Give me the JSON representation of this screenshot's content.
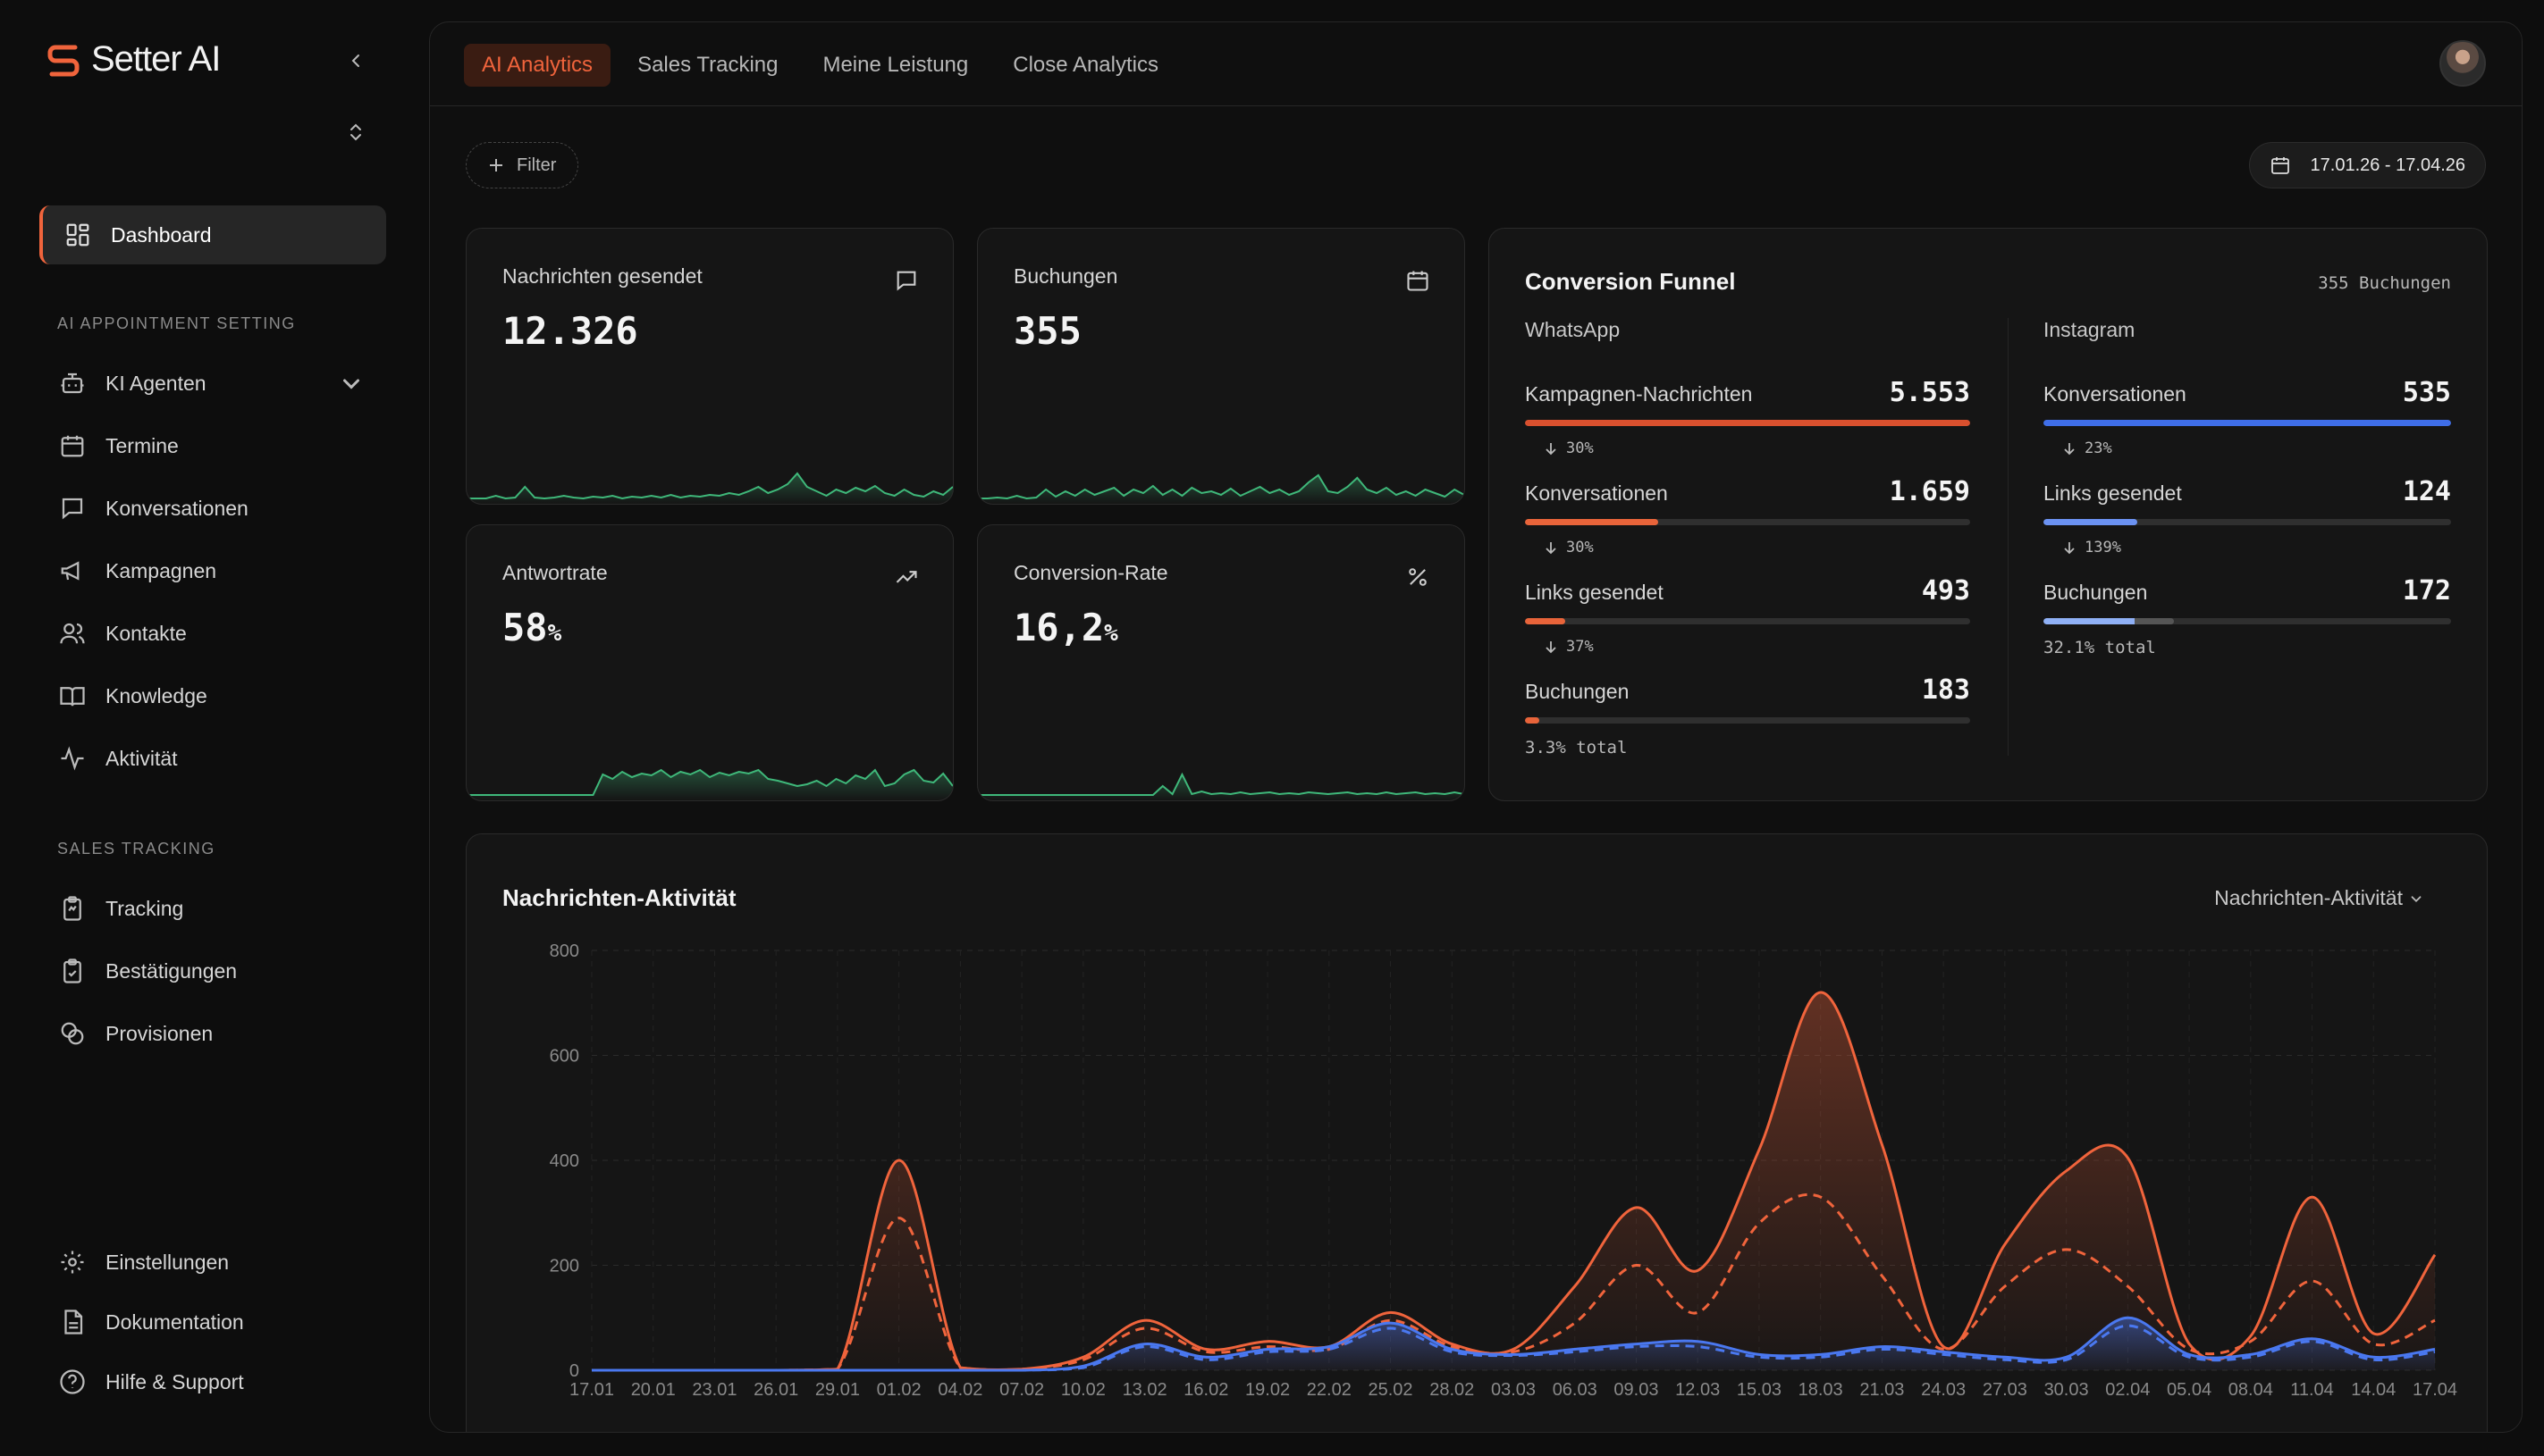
{
  "brand": {
    "name": "Setter AI",
    "accent": "#f0643c"
  },
  "sidebar": {
    "dashboard": "Dashboard",
    "section_ai": "AI APPOINTMENT SETTING",
    "ai_items": [
      {
        "label": "KI Agenten",
        "icon": "bot-icon"
      },
      {
        "label": "Termine",
        "icon": "calendar-icon"
      },
      {
        "label": "Konversationen",
        "icon": "chat-icon"
      },
      {
        "label": "Kampagnen",
        "icon": "megaphone-icon"
      },
      {
        "label": "Kontakte",
        "icon": "users-icon"
      },
      {
        "label": "Knowledge",
        "icon": "book-icon"
      },
      {
        "label": "Aktivität",
        "icon": "activity-icon"
      }
    ],
    "section_sales": "SALES TRACKING",
    "sales_items": [
      {
        "label": "Tracking",
        "icon": "clipboard-icon"
      },
      {
        "label": "Bestätigungen",
        "icon": "clipboard-check-icon"
      },
      {
        "label": "Provisionen",
        "icon": "coins-icon"
      }
    ],
    "bottom_items": [
      {
        "label": "Einstellungen",
        "icon": "gear-icon"
      },
      {
        "label": "Dokumentation",
        "icon": "document-icon"
      },
      {
        "label": "Hilfe & Support",
        "icon": "help-icon"
      }
    ]
  },
  "tabs": [
    "AI Analytics",
    "Sales Tracking",
    "Meine Leistung",
    "Close Analytics"
  ],
  "filter_label": "Filter",
  "date_range": "17.01.26 - 17.04.26",
  "kpis": {
    "messages": {
      "title": "Nachrichten gesendet",
      "value": "12.326"
    },
    "bookings": {
      "title": "Buchungen",
      "value": "355"
    },
    "reply_rate": {
      "title": "Antwortrate",
      "value": "58",
      "unit": "%"
    },
    "conversion": {
      "title": "Conversion-Rate",
      "value": "16,2",
      "unit": "%"
    }
  },
  "funnel": {
    "title": "Conversion Funnel",
    "total": "355 Buchungen",
    "whatsapp": {
      "title": "WhatsApp",
      "rows": [
        {
          "label": "Kampagnen-Nachrichten",
          "value": "5.553",
          "fill": 1.0,
          "drop": "30%"
        },
        {
          "label": "Konversationen",
          "value": "1.659",
          "fill": 0.3,
          "drop": "30%"
        },
        {
          "label": "Links gesendet",
          "value": "493",
          "fill": 0.09,
          "drop": "37%"
        },
        {
          "label": "Buchungen",
          "value": "183",
          "fill": 0.033
        }
      ],
      "total": "3.3% total"
    },
    "instagram": {
      "title": "Instagram",
      "rows": [
        {
          "label": "Konversationen",
          "value": "535",
          "fill": 1.0,
          "drop": "23%"
        },
        {
          "label": "Links gesendet",
          "value": "124",
          "fill": 0.23,
          "drop": "139%"
        },
        {
          "label": "Buchungen",
          "value": "172",
          "fill": 0.32
        }
      ],
      "total": "32.1% total"
    }
  },
  "activity": {
    "title": "Nachrichten-Aktivität",
    "select": "Nachrichten-Aktivität"
  },
  "chart_data": {
    "type": "line",
    "title": "Nachrichten-Aktivität",
    "ylim": [
      0,
      800
    ],
    "yticks": [
      0,
      200,
      400,
      600,
      800
    ],
    "x": [
      "17.01",
      "20.01",
      "23.01",
      "26.01",
      "29.01",
      "01.02",
      "04.02",
      "07.02",
      "10.02",
      "13.02",
      "16.02",
      "19.02",
      "22.02",
      "25.02",
      "28.02",
      "03.03",
      "06.03",
      "09.03",
      "12.03",
      "15.03",
      "18.03",
      "21.03",
      "24.03",
      "27.03",
      "30.03",
      "02.04",
      "05.04",
      "08.04",
      "11.04",
      "14.04",
      "17.04"
    ],
    "grid": true,
    "series": [
      {
        "color": "#f0643c",
        "style": "solid",
        "values": [
          0,
          0,
          0,
          0,
          2,
          400,
          5,
          2,
          25,
          95,
          40,
          55,
          45,
          110,
          50,
          40,
          160,
          310,
          190,
          420,
          720,
          430,
          45,
          240,
          380,
          405,
          50,
          65,
          330,
          70,
          220
        ]
      },
      {
        "color": "#f0643c",
        "style": "dashed",
        "values": [
          0,
          0,
          0,
          0,
          2,
          290,
          5,
          2,
          20,
          80,
          35,
          45,
          40,
          95,
          45,
          35,
          90,
          200,
          110,
          280,
          330,
          180,
          40,
          160,
          230,
          160,
          40,
          55,
          170,
          50,
          95
        ]
      },
      {
        "color": "#4a78f0",
        "style": "solid",
        "values": [
          0,
          0,
          0,
          0,
          0,
          0,
          0,
          0,
          8,
          50,
          25,
          40,
          45,
          90,
          40,
          30,
          40,
          50,
          55,
          30,
          30,
          45,
          35,
          25,
          25,
          100,
          30,
          30,
          60,
          25,
          40
        ]
      },
      {
        "color": "#4a78f0",
        "style": "dashed",
        "values": [
          0,
          0,
          0,
          0,
          0,
          0,
          0,
          0,
          5,
          45,
          20,
          35,
          40,
          80,
          35,
          28,
          35,
          45,
          45,
          25,
          25,
          40,
          30,
          20,
          20,
          85,
          25,
          25,
          55,
          20,
          35
        ]
      }
    ]
  },
  "sparklines": {
    "messages": [
      0.02,
      0.02,
      0.02,
      0.05,
      0.02,
      0.03,
      0.15,
      0.03,
      0.02,
      0.03,
      0.05,
      0.03,
      0.02,
      0.04,
      0.03,
      0.05,
      0.02,
      0.04,
      0.03,
      0.05,
      0.03,
      0.06,
      0.03,
      0.05,
      0.04,
      0.06,
      0.05,
      0.08,
      0.06,
      0.1,
      0.15,
      0.08,
      0.12,
      0.18,
      0.3,
      0.15,
      0.1,
      0.05,
      0.12,
      0.08,
      0.14,
      0.1,
      0.16,
      0.08,
      0.05,
      0.12,
      0.06,
      0.04,
      0.1,
      0.06,
      0.15
    ],
    "bookings": [
      0.02,
      0.02,
      0.03,
      0.02,
      0.05,
      0.02,
      0.03,
      0.12,
      0.04,
      0.1,
      0.05,
      0.12,
      0.06,
      0.1,
      0.14,
      0.05,
      0.12,
      0.08,
      0.16,
      0.06,
      0.12,
      0.05,
      0.14,
      0.08,
      0.1,
      0.06,
      0.13,
      0.05,
      0.1,
      0.15,
      0.08,
      0.12,
      0.06,
      0.1,
      0.2,
      0.28,
      0.1,
      0.08,
      0.15,
      0.25,
      0.12,
      0.08,
      0.14,
      0.06,
      0.1,
      0.05,
      0.12,
      0.08,
      0.04,
      0.12,
      0.06
    ],
    "reply": [
      0.02,
      0.02,
      0.02,
      0.02,
      0.02,
      0.02,
      0.02,
      0.02,
      0.02,
      0.02,
      0.02,
      0.02,
      0.02,
      0.02,
      0.25,
      0.2,
      0.28,
      0.22,
      0.26,
      0.24,
      0.3,
      0.22,
      0.28,
      0.25,
      0.3,
      0.22,
      0.27,
      0.24,
      0.28,
      0.26,
      0.3,
      0.2,
      0.18,
      0.15,
      0.12,
      0.14,
      0.18,
      0.12,
      0.2,
      0.15,
      0.24,
      0.2,
      0.3,
      0.12,
      0.15,
      0.25,
      0.3,
      0.18,
      0.16,
      0.26,
      0.12
    ],
    "conversion": [
      0.02,
      0.02,
      0.02,
      0.02,
      0.02,
      0.02,
      0.02,
      0.02,
      0.02,
      0.02,
      0.02,
      0.02,
      0.02,
      0.02,
      0.02,
      0.02,
      0.02,
      0.02,
      0.02,
      0.12,
      0.03,
      0.25,
      0.03,
      0.06,
      0.03,
      0.04,
      0.03,
      0.05,
      0.03,
      0.04,
      0.05,
      0.03,
      0.04,
      0.03,
      0.05,
      0.04,
      0.03,
      0.04,
      0.05,
      0.03,
      0.04,
      0.03,
      0.05,
      0.03,
      0.04,
      0.05,
      0.03,
      0.04,
      0.03,
      0.05,
      0.03
    ]
  }
}
